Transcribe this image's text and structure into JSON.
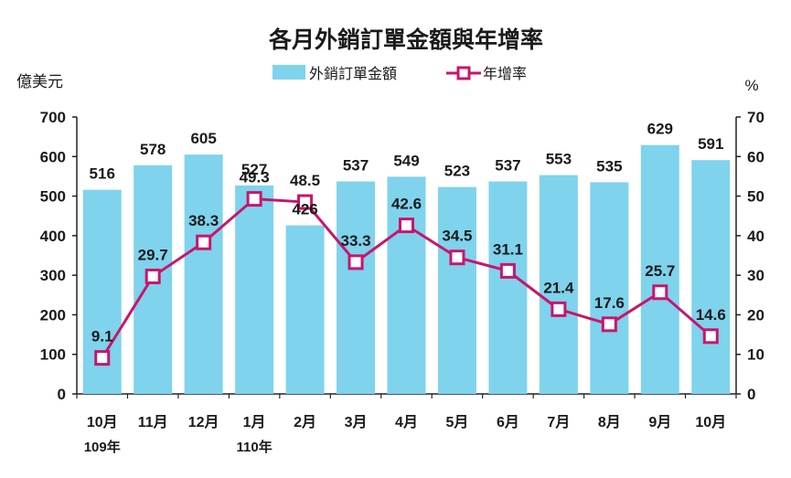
{
  "chart_data": {
    "type": "bar",
    "title": "各月外銷訂單金額與年增率",
    "ylabel_left": "億美元",
    "ylabel_right": "%",
    "categories": [
      "10月",
      "11月",
      "12月",
      "1月",
      "2月",
      "3月",
      "4月",
      "5月",
      "6月",
      "7月",
      "8月",
      "9月",
      "10月"
    ],
    "year_labels": [
      {
        "index": 0,
        "text": "109年"
      },
      {
        "index": 3,
        "text": "110年"
      }
    ],
    "left_axis": {
      "min": 0,
      "max": 700,
      "ticks": [
        0,
        100,
        200,
        300,
        400,
        500,
        600,
        700
      ]
    },
    "right_axis": {
      "min": 0,
      "max": 70,
      "ticks": [
        0,
        10,
        20,
        30,
        40,
        50,
        60,
        70
      ]
    },
    "grid": false,
    "legend_position": "top",
    "series": [
      {
        "name": "外銷訂單金額",
        "type": "bar",
        "axis": "left",
        "color": "#7fd3ec",
        "values": [
          516,
          578,
          605,
          527,
          426,
          537,
          549,
          523,
          537,
          553,
          535,
          629,
          591
        ]
      },
      {
        "name": "年增率",
        "type": "line",
        "axis": "right",
        "color": "#c8156c",
        "values": [
          9.1,
          29.7,
          38.3,
          49.3,
          48.5,
          33.3,
          42.6,
          34.5,
          31.1,
          21.4,
          17.6,
          25.7,
          14.6
        ]
      }
    ]
  }
}
